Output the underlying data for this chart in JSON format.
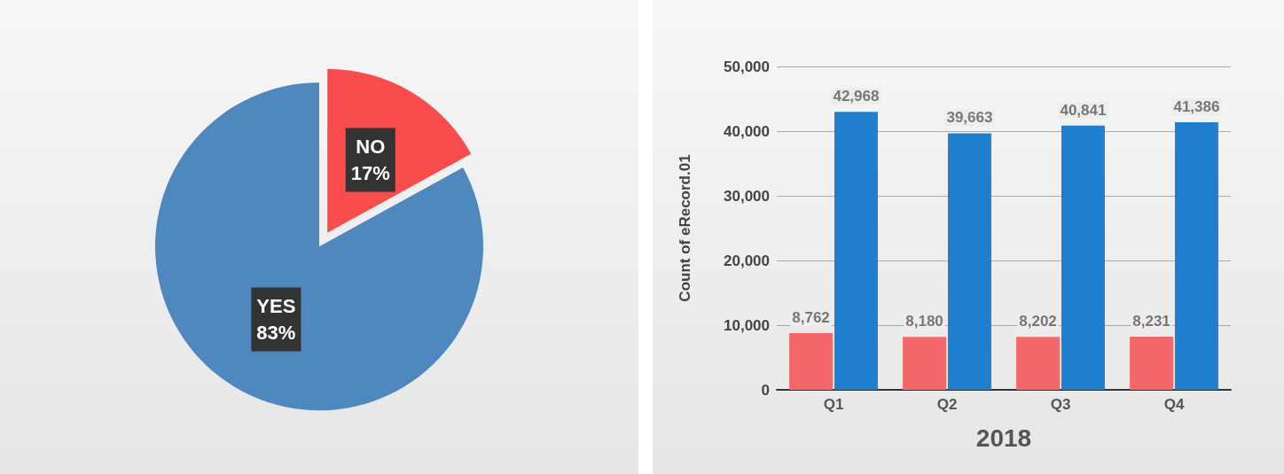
{
  "chart_data": [
    {
      "type": "pie",
      "categories": [
        "NO",
        "YES"
      ],
      "values": [
        17,
        83
      ],
      "colors": [
        "#f94c4c",
        "#4f87bf"
      ],
      "value_labels": [
        "17%",
        "83%"
      ]
    },
    {
      "type": "bar",
      "categories": [
        "Q1",
        "Q2",
        "Q3",
        "Q4"
      ],
      "xlabel": "2018",
      "ylabel": "Count of eRecord.01",
      "series": [
        {
          "color": "#f4676a",
          "values": [
            8762,
            8180,
            8202,
            8231
          ],
          "value_labels": [
            "8,762",
            "8,180",
            "8,202",
            "8,231"
          ]
        },
        {
          "color": "#1f7fce",
          "values": [
            42968,
            39663,
            40841,
            41386
          ],
          "value_labels": [
            "42,968",
            "39,663",
            "40,841",
            "41,386"
          ]
        }
      ],
      "ylim": [
        0,
        50000
      ],
      "yticks": [
        0,
        {
          "value": 10000,
          "label": "10,000"
        },
        {
          "value": 20000,
          "label": "20,000"
        },
        {
          "value": 30000,
          "label": "30,000"
        },
        {
          "value": 40000,
          "label": "40,000"
        },
        {
          "value": 50000,
          "label": "50,000"
        }
      ],
      "grid": "y"
    }
  ]
}
